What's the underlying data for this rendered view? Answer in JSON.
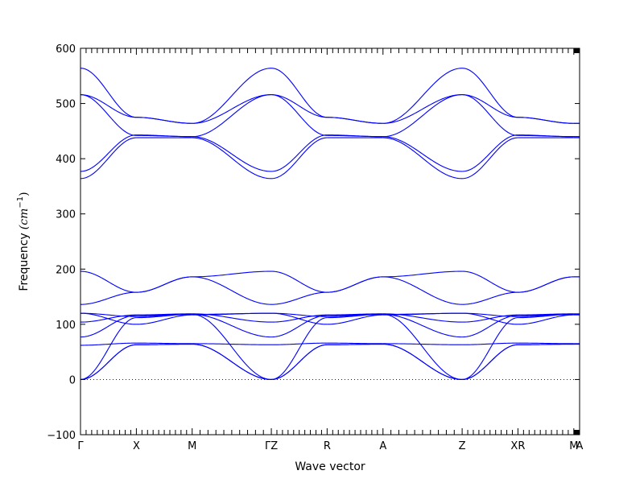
{
  "chart_data": {
    "type": "line",
    "xlabel": "Wave vector",
    "ylabel": "Frequency",
    "ylabel_unit": "(cm",
    "ylabel_exp": "−1",
    "ylabel_close": ")",
    "ylim": [
      -100,
      600
    ],
    "yticks": [
      -100,
      0,
      100,
      200,
      300,
      400,
      500,
      600
    ],
    "zero_line": true,
    "grid": false,
    "legend": "none",
    "line_color": "#0000ff",
    "path_points": [
      {
        "label": "Γ",
        "x": 0.0
      },
      {
        "label": "X",
        "x": 0.667
      },
      {
        "label": "M",
        "x": 1.333
      },
      {
        "label": "ΓZ",
        "x": 2.278
      },
      {
        "label": "R",
        "x": 2.944
      },
      {
        "label": "A",
        "x": 3.611
      },
      {
        "label": "Z",
        "x": 4.556
      },
      {
        "label": "XR",
        "x": 5.222
      },
      {
        "label": "M",
        "x": 5.889
      },
      {
        "label": "A",
        "x": 5.958
      }
    ],
    "segments": [
      {
        "from": "Γ",
        "to": "X",
        "x0": 0.0,
        "x1": 0.667,
        "bands": [
          [
            0,
            63
          ],
          [
            0,
            63
          ],
          [
            0,
            112
          ],
          [
            62,
            66
          ],
          [
            120,
            100
          ],
          [
            120,
            114
          ],
          [
            77,
            116
          ],
          [
            104,
            117
          ],
          [
            136,
            158
          ],
          [
            196,
            158
          ],
          [
            364,
            438
          ],
          [
            377,
            443
          ],
          [
            516,
            442
          ],
          [
            516,
            475
          ],
          [
            564,
            475
          ]
        ]
      },
      {
        "from": "X",
        "to": "M",
        "x0": 0.667,
        "x1": 1.333,
        "bands": [
          [
            63,
            64
          ],
          [
            63,
            64
          ],
          [
            112,
            118
          ],
          [
            66,
            65
          ],
          [
            100,
            117
          ],
          [
            114,
            118
          ],
          [
            116,
            118
          ],
          [
            117,
            119
          ],
          [
            158,
            186
          ],
          [
            158,
            186
          ],
          [
            438,
            438
          ],
          [
            443,
            440
          ],
          [
            442,
            440
          ],
          [
            475,
            464
          ],
          [
            475,
            464
          ]
        ]
      },
      {
        "from": "M",
        "to": "ΓZ",
        "x0": 1.333,
        "x1": 2.278,
        "bands": [
          [
            64,
            0
          ],
          [
            64,
            0
          ],
          [
            118,
            0
          ],
          [
            65,
            63
          ],
          [
            117,
            120
          ],
          [
            118,
            120
          ],
          [
            118,
            77
          ],
          [
            119,
            104
          ],
          [
            186,
            136
          ],
          [
            186,
            196
          ],
          [
            438,
            364
          ],
          [
            440,
            377
          ],
          [
            440,
            516
          ],
          [
            464,
            516
          ],
          [
            464,
            564
          ]
        ]
      },
      {
        "from": "ΓZ",
        "to": "R",
        "x0": 2.278,
        "x1": 2.944,
        "bands": [
          [
            0,
            63
          ],
          [
            0,
            63
          ],
          [
            0,
            112
          ],
          [
            63,
            66
          ],
          [
            120,
            100
          ],
          [
            120,
            114
          ],
          [
            77,
            116
          ],
          [
            104,
            117
          ],
          [
            136,
            158
          ],
          [
            196,
            158
          ],
          [
            364,
            438
          ],
          [
            377,
            443
          ],
          [
            516,
            442
          ],
          [
            516,
            475
          ],
          [
            564,
            475
          ]
        ]
      },
      {
        "from": "R",
        "to": "A",
        "x0": 2.944,
        "x1": 3.611,
        "bands": [
          [
            63,
            64
          ],
          [
            63,
            64
          ],
          [
            112,
            118
          ],
          [
            66,
            65
          ],
          [
            100,
            117
          ],
          [
            114,
            118
          ],
          [
            116,
            118
          ],
          [
            117,
            119
          ],
          [
            158,
            186
          ],
          [
            158,
            186
          ],
          [
            438,
            438
          ],
          [
            443,
            440
          ],
          [
            442,
            440
          ],
          [
            475,
            464
          ],
          [
            475,
            464
          ]
        ]
      },
      {
        "from": "A",
        "to": "Z",
        "x0": 3.611,
        "x1": 4.556,
        "bands": [
          [
            64,
            0
          ],
          [
            64,
            0
          ],
          [
            118,
            0
          ],
          [
            65,
            63
          ],
          [
            117,
            120
          ],
          [
            118,
            120
          ],
          [
            118,
            77
          ],
          [
            119,
            104
          ],
          [
            186,
            136
          ],
          [
            186,
            196
          ],
          [
            438,
            364
          ],
          [
            440,
            377
          ],
          [
            440,
            516
          ],
          [
            464,
            516
          ],
          [
            464,
            564
          ]
        ]
      },
      {
        "from": "Z",
        "to": "XR",
        "x0": 4.556,
        "x1": 5.222,
        "bands": [
          [
            0,
            63
          ],
          [
            0,
            63
          ],
          [
            0,
            112
          ],
          [
            63,
            66
          ],
          [
            120,
            100
          ],
          [
            120,
            114
          ],
          [
            77,
            116
          ],
          [
            104,
            117
          ],
          [
            136,
            158
          ],
          [
            196,
            158
          ],
          [
            364,
            438
          ],
          [
            377,
            443
          ],
          [
            516,
            442
          ],
          [
            516,
            475
          ],
          [
            564,
            475
          ]
        ]
      },
      {
        "from": "XR",
        "to": "M",
        "x0": 5.222,
        "x1": 5.889,
        "bands": [
          [
            63,
            64
          ],
          [
            63,
            64
          ],
          [
            112,
            118
          ],
          [
            66,
            65
          ],
          [
            100,
            117
          ],
          [
            114,
            118
          ],
          [
            116,
            118
          ],
          [
            117,
            119
          ],
          [
            158,
            186
          ],
          [
            158,
            186
          ],
          [
            438,
            438
          ],
          [
            443,
            440
          ],
          [
            442,
            440
          ],
          [
            475,
            464
          ],
          [
            475,
            464
          ]
        ]
      },
      {
        "from": "M",
        "to": "A",
        "x0": 5.889,
        "x1": 5.958,
        "bands": [
          [
            64,
            64
          ],
          [
            64,
            64
          ],
          [
            118,
            118
          ],
          [
            65,
            65
          ],
          [
            117,
            117
          ],
          [
            118,
            118
          ],
          [
            118,
            118
          ],
          [
            119,
            119
          ],
          [
            186,
            186
          ],
          [
            186,
            186
          ],
          [
            438,
            438
          ],
          [
            440,
            440
          ],
          [
            440,
            440
          ],
          [
            464,
            464
          ],
          [
            464,
            464
          ]
        ]
      }
    ]
  }
}
